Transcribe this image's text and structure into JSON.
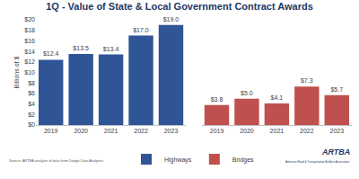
{
  "chart_data": {
    "type": "bar",
    "title": "1Q - Value of State & Local Government Contract Awards",
    "y_label": "Billions of $",
    "categories": [
      "2019",
      "2020",
      "2021",
      "2022",
      "2023"
    ],
    "series": [
      {
        "name": "Highways",
        "color": "#2f5597",
        "values": [
          12.4,
          13.5,
          13.4,
          17.0,
          19.0
        ],
        "value_labels": [
          "$12.4",
          "$13.5",
          "$13.4",
          "$17.0",
          "$19.0"
        ]
      },
      {
        "name": "Bridges",
        "color": "#c0504d",
        "values": [
          3.8,
          5.0,
          4.1,
          7.3,
          5.7
        ],
        "value_labels": [
          "$3.8",
          "$5.0",
          "$4.1",
          "$7.3",
          "$5.7"
        ]
      }
    ],
    "ylim": [
      0,
      20
    ],
    "yticks": [
      {
        "value": 0,
        "label": "$0"
      },
      {
        "value": 2,
        "label": "$2"
      },
      {
        "value": 4,
        "label": "$4"
      },
      {
        "value": 6,
        "label": "$6"
      },
      {
        "value": 8,
        "label": "$8"
      },
      {
        "value": 10,
        "label": "$10"
      },
      {
        "value": 12,
        "label": "$12"
      },
      {
        "value": 14,
        "label": "$14"
      },
      {
        "value": 16,
        "label": "$16"
      },
      {
        "value": 18,
        "label": "$18"
      },
      {
        "value": 20,
        "label": "$20"
      }
    ],
    "grid": false,
    "data_labels": true,
    "legend": "bottom",
    "annotations": [
      "Source: ARTBA analysis of data from Dodge Data Analytics",
      "ARTBA",
      "American Road & Transportation Builders Association"
    ]
  }
}
